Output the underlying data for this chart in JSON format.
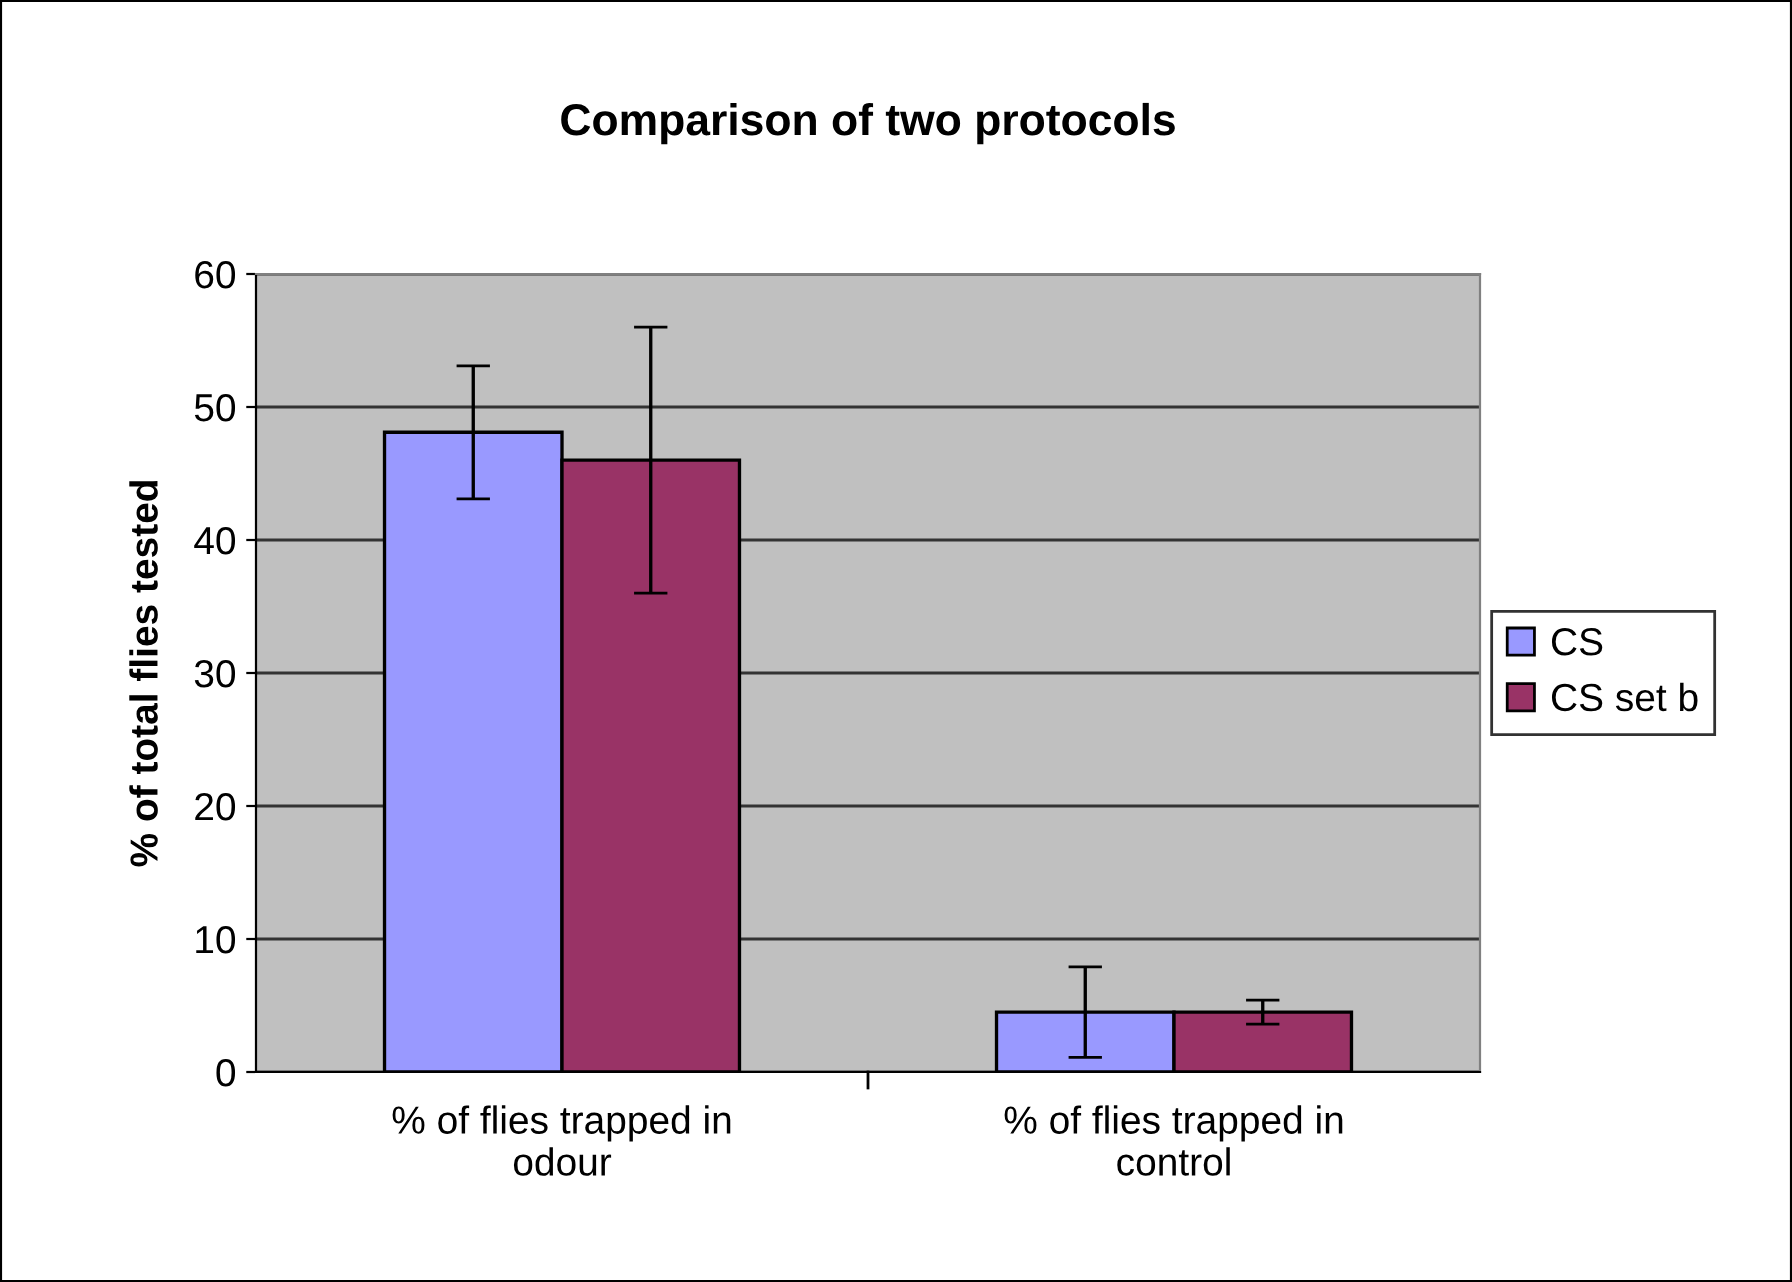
{
  "chart_data": {
    "type": "bar",
    "title": "Comparison of two protocols",
    "ylabel": "% of total flies tested",
    "categories": [
      "% of flies trapped in\nodour",
      "% of flies trapped in\ncontrol"
    ],
    "series": [
      {
        "name": "CS",
        "color": "#9999ff",
        "values": [
          48.1,
          4.5
        ],
        "errors": [
          5,
          3.4
        ]
      },
      {
        "name": "CS set b",
        "color": "#993366",
        "values": [
          46,
          4.5
        ],
        "errors": [
          10,
          0.9
        ]
      }
    ],
    "ylim": [
      0,
      60
    ],
    "yticks": [
      0,
      10,
      20,
      30,
      40,
      50,
      60
    ],
    "grid": "y",
    "legend": "right"
  }
}
